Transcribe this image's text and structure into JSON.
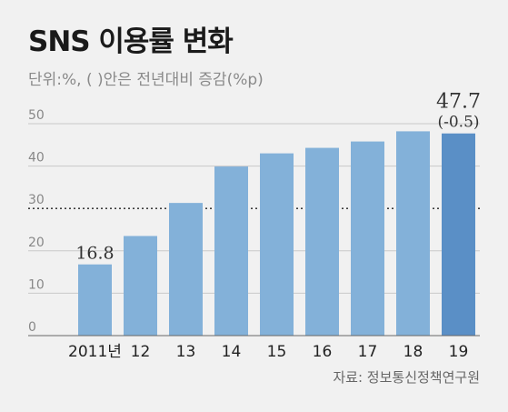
{
  "title": "SNS 이용률 변화",
  "subtitle": "단위:%, ( )안은 전년대비 증감(%p)",
  "source": "자료: 정보통신정책연구원",
  "colors": {
    "bar": "#83b1d9",
    "highlight_bar": "#5a8fc6",
    "grid": "#c9c9c9",
    "threshold_line": "#222222",
    "background": "#f1f1f1"
  },
  "chart_data": {
    "type": "bar",
    "categories": [
      "2011년",
      "12",
      "13",
      "14",
      "15",
      "16",
      "17",
      "18",
      "19"
    ],
    "values": [
      16.8,
      23.5,
      31.3,
      39.9,
      43.0,
      44.3,
      45.8,
      48.2,
      47.7
    ],
    "ylim": [
      0,
      50
    ],
    "yticks": [
      0,
      10,
      20,
      30,
      40,
      50
    ],
    "grid": true,
    "reference_line": 30,
    "highlight_index": 8,
    "data_labels": [
      {
        "index": 0,
        "text": "16.8"
      },
      {
        "index": 8,
        "text": "47.7",
        "subtext": "(-0.5)"
      }
    ]
  }
}
